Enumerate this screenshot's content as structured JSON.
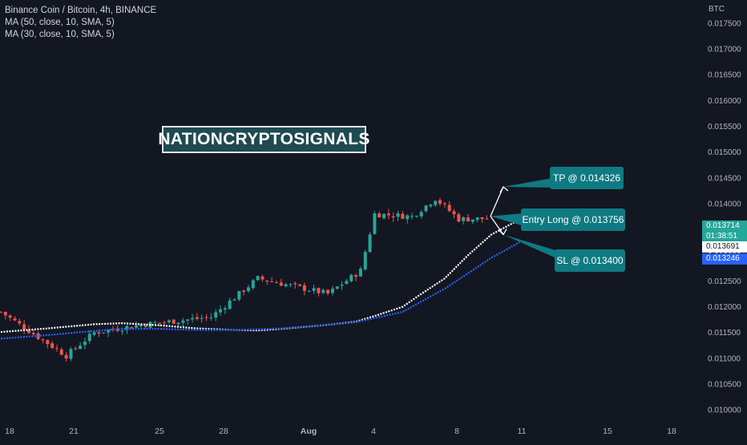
{
  "legend": {
    "symbol": "Binance Coin / Bitcoin, 4h, BINANCE",
    "ma1": "MA (50, close, 10, SMA, 5)",
    "ma2": "MA (30, close, 10, SMA, 5)"
  },
  "currency": "BTC",
  "brand_label": "NATIONCRYPTOSIGNALS",
  "callouts": {
    "tp": "TP @ 0.014326",
    "entry": "Entry Long @ 0.013756",
    "sl": "SL @ 0.013400"
  },
  "price_badges": {
    "last": "0.013714",
    "countdown": "01:38:51",
    "ma1": "0.013691",
    "ma2": "0.013246"
  },
  "colors": {
    "background": "#131722",
    "up": "#26a69a",
    "down": "#ef5350",
    "ma1": "#ffffff",
    "ma2": "#2962ff",
    "callout": "#0f7a82"
  },
  "chart_data": {
    "type": "candlestick",
    "title": "Binance Coin / Bitcoin, 4h, BINANCE",
    "xlabel": "",
    "ylabel": "BTC",
    "x_ticks": [
      "18",
      "21",
      "25",
      "28",
      "Aug",
      "4",
      "8",
      "11",
      "15",
      "18"
    ],
    "y_ticks": [
      "0.017500",
      "0.017000",
      "0.016500",
      "0.016000",
      "0.015500",
      "0.015000",
      "0.014500",
      "0.014000",
      "0.013500",
      "0.013000",
      "0.012500",
      "0.012000",
      "0.011500",
      "0.011000",
      "0.010500",
      "0.010000"
    ],
    "ylim": [
      0.0098,
      0.01795
    ],
    "grid": false,
    "series": [
      {
        "name": "MA (50, close, 10, SMA, 5)",
        "x": [
          0,
          10,
          20,
          26,
          34,
          42,
          50,
          55,
          60,
          70,
          76,
          80,
          86,
          90,
          95,
          100,
          105,
          111
        ],
        "values": [
          0.01151,
          0.01158,
          0.01166,
          0.01168,
          0.01164,
          0.01158,
          0.01155,
          0.01154,
          0.01157,
          0.01165,
          0.01171,
          0.01182,
          0.012,
          0.01225,
          0.01255,
          0.013,
          0.0134,
          0.01369
        ]
      },
      {
        "name": "MA (30, close, 10, SMA, 5)",
        "x": [
          0,
          10,
          20,
          26,
          34,
          42,
          50,
          55,
          60,
          70,
          76,
          80,
          86,
          90,
          95,
          100,
          105,
          111
        ],
        "values": [
          0.01138,
          0.01145,
          0.01153,
          0.01157,
          0.01157,
          0.01155,
          0.01155,
          0.01156,
          0.01158,
          0.01165,
          0.0117,
          0.01178,
          0.0119,
          0.0121,
          0.01235,
          0.01265,
          0.01295,
          0.01325
        ]
      }
    ],
    "annotations": [
      {
        "label": "TP @ 0.014326",
        "price": 0.014326
      },
      {
        "label": "Entry Long @ 0.013756",
        "price": 0.013756
      },
      {
        "label": "SL @ 0.013400",
        "price": 0.0134
      }
    ],
    "last_price": 0.013714,
    "key_closes": [
      {
        "x": 0,
        "close": 0.0119
      },
      {
        "x": 14,
        "close": 0.01105
      },
      {
        "x": 20,
        "close": 0.0115
      },
      {
        "x": 30,
        "close": 0.01165
      },
      {
        "x": 45,
        "close": 0.0118
      },
      {
        "x": 55,
        "close": 0.01255
      },
      {
        "x": 70,
        "close": 0.01225
      },
      {
        "x": 77,
        "close": 0.0127
      },
      {
        "x": 80,
        "close": 0.0138
      },
      {
        "x": 88,
        "close": 0.01375
      },
      {
        "x": 93,
        "close": 0.0141
      },
      {
        "x": 98,
        "close": 0.0137
      },
      {
        "x": 104,
        "close": 0.01371
      }
    ]
  }
}
